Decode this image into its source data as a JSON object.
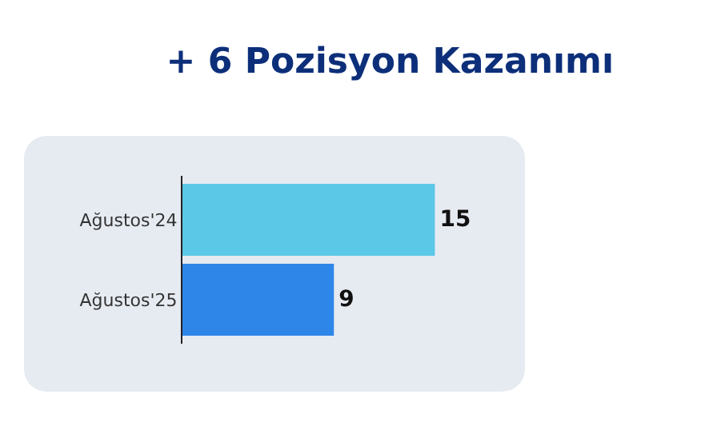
{
  "chart_data": {
    "type": "bar",
    "title": "+ 6 Pozisyon Kazanımı",
    "orientation": "horizontal",
    "categories": [
      "Ağustos'24",
      "Ağustos'25"
    ],
    "values": [
      15,
      9
    ],
    "colors": [
      "#5bc8e8",
      "#2e86e8"
    ],
    "data_labels": true,
    "tick_labels": "y"
  }
}
